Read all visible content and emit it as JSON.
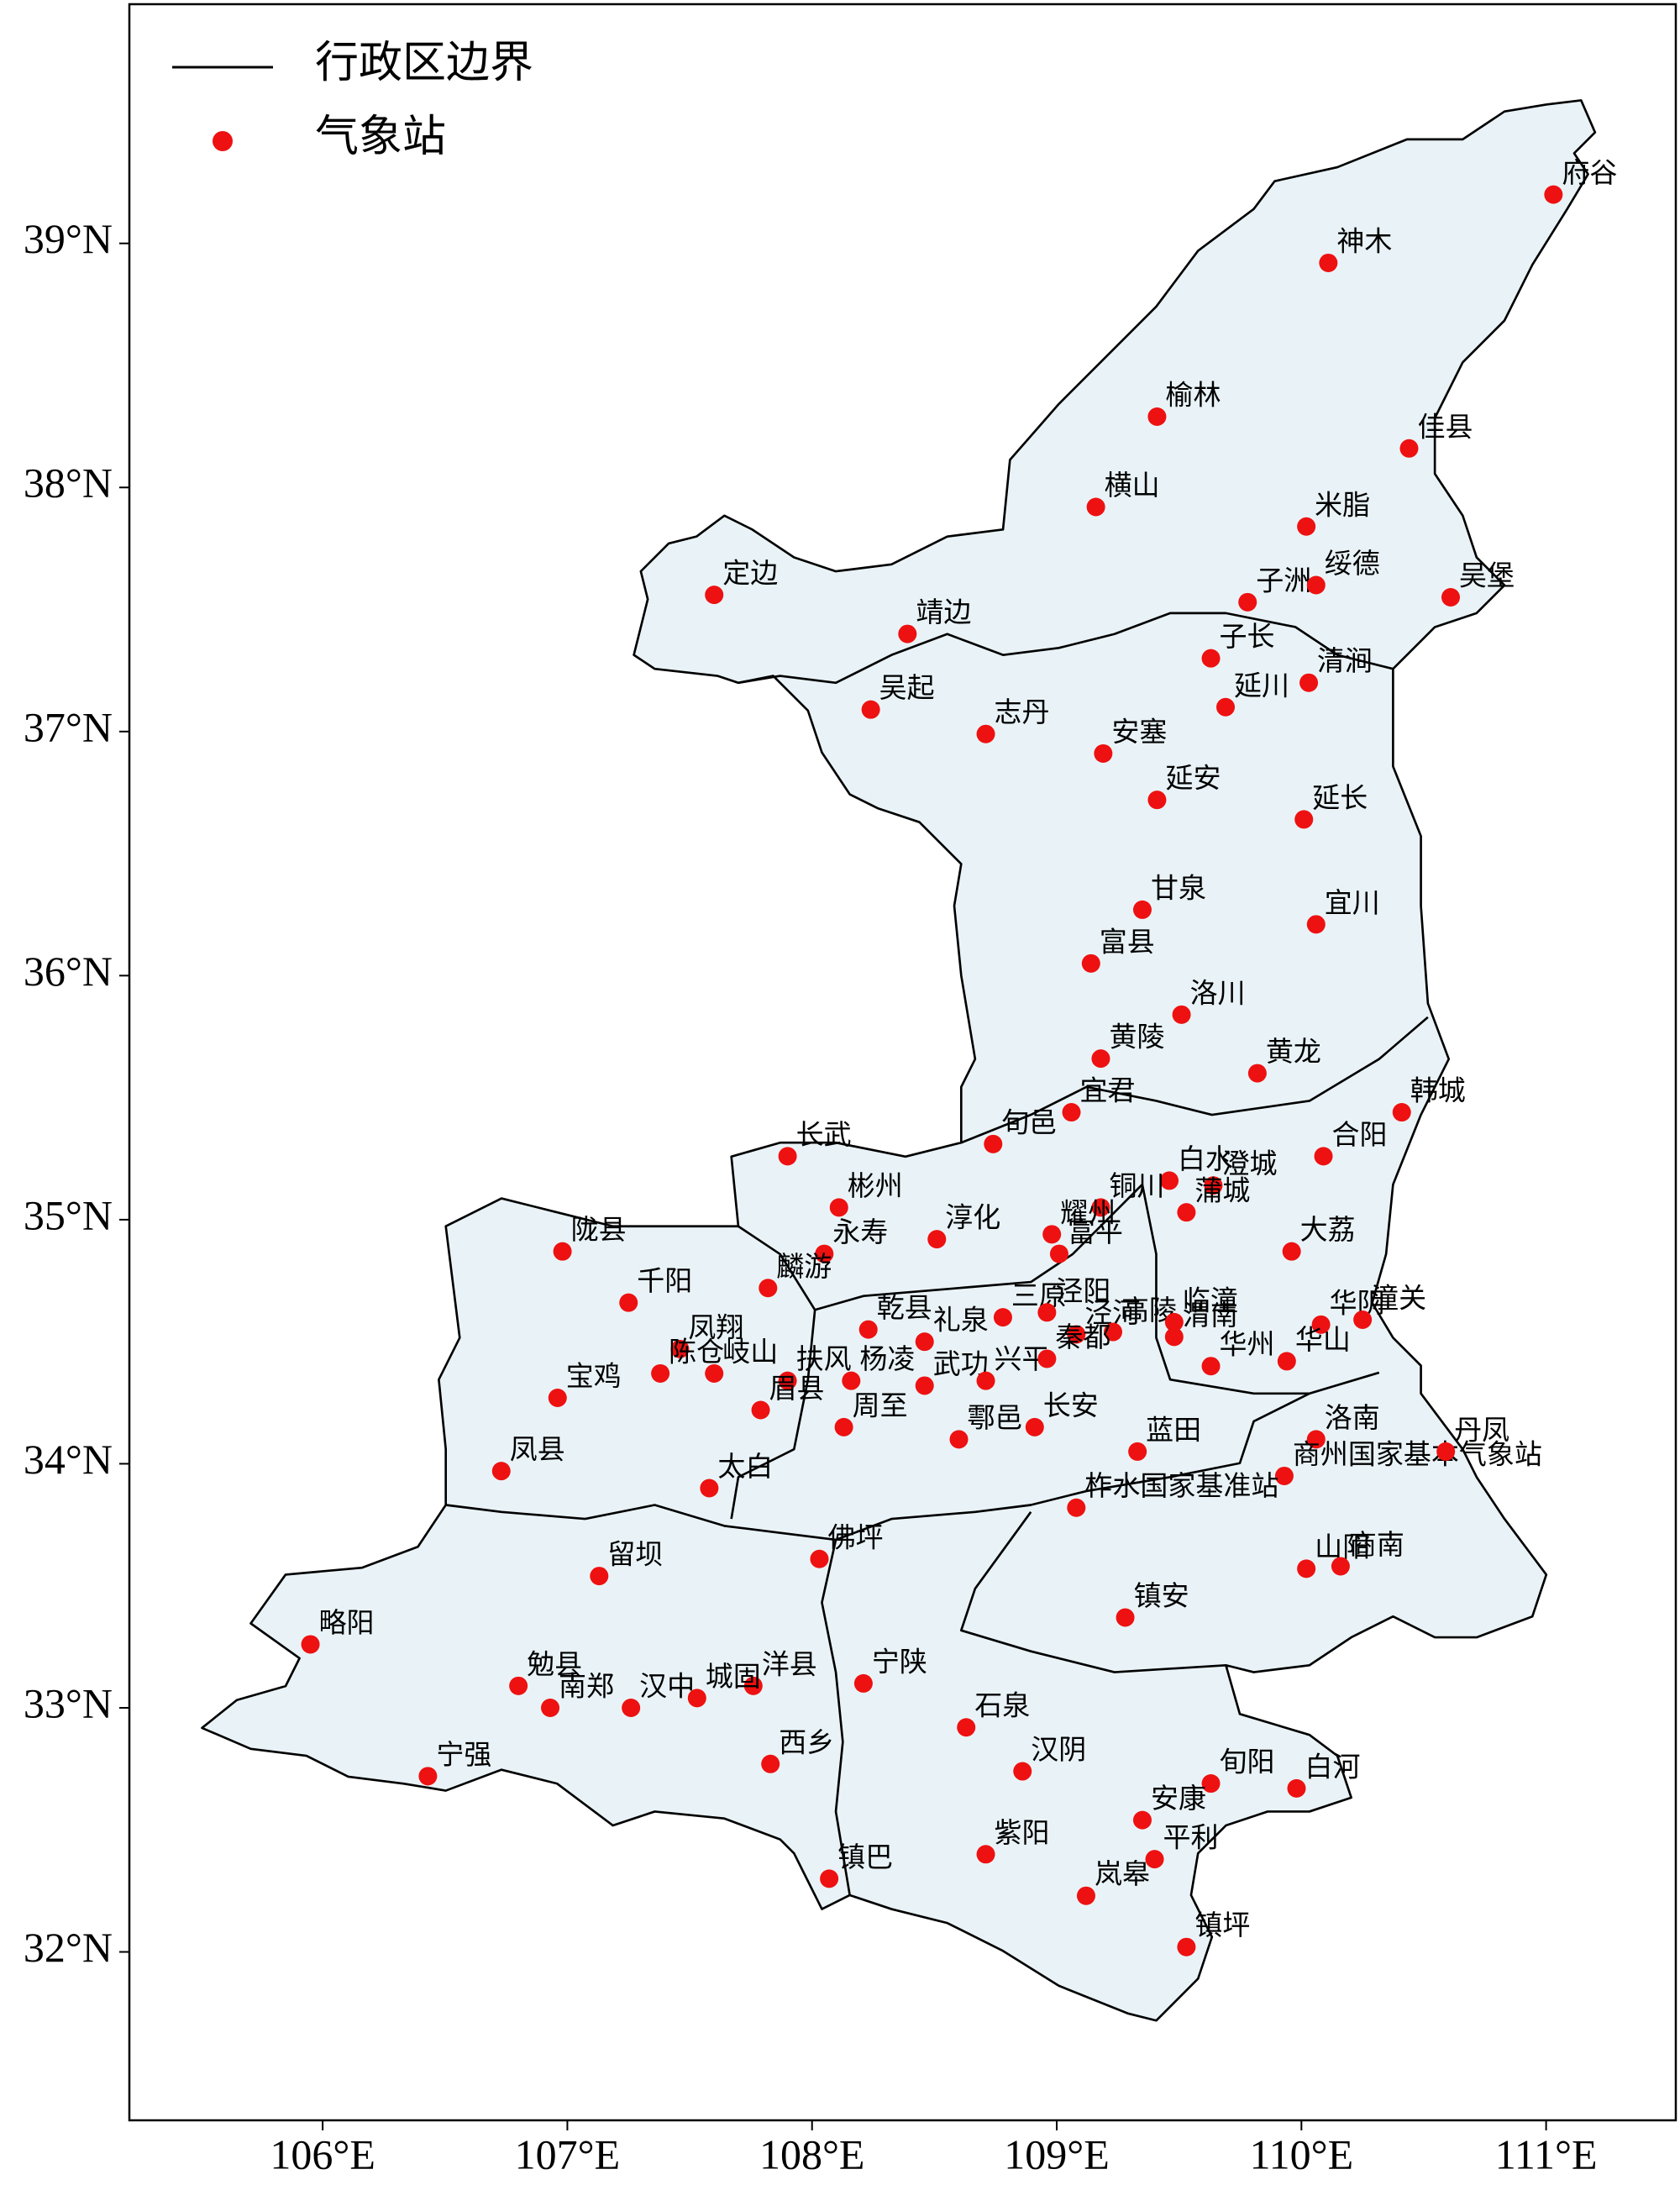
{
  "chart_data": {
    "type": "map",
    "legend": {
      "boundary": "行政区边界",
      "stations": "气象站"
    },
    "color": "#ee1111",
    "boundary_color": "#000000",
    "fill": "#e9f3f7",
    "xlim": [
      105.21,
      111.53
    ],
    "ylim": [
      31.31,
      39.98
    ],
    "xticks": [
      {
        "value": 106,
        "label": "106°E"
      },
      {
        "value": 107,
        "label": "107°E"
      },
      {
        "value": 108,
        "label": "108°E"
      },
      {
        "value": 109,
        "label": "109°E"
      },
      {
        "value": 110,
        "label": "110°E"
      },
      {
        "value": 111,
        "label": "111°E"
      }
    ],
    "yticks": [
      {
        "value": 32,
        "label": "32°N"
      },
      {
        "value": 33,
        "label": "33°N"
      },
      {
        "value": 34,
        "label": "34°N"
      },
      {
        "value": 35,
        "label": "35°N"
      },
      {
        "value": 36,
        "label": "36°N"
      },
      {
        "value": 37,
        "label": "37°N"
      },
      {
        "value": 38,
        "label": "38°N"
      },
      {
        "value": 39,
        "label": "39°N"
      }
    ],
    "stations": {
      "names": [
        "府谷",
        "神木",
        "榆林",
        "佳县",
        "横山",
        "米脂",
        "定边",
        "子洲",
        "绥德",
        "吴堡",
        "靖边",
        "子长",
        "清涧",
        "吴起",
        "延川",
        "志丹",
        "安塞",
        "延安",
        "延长",
        "甘泉",
        "宜川",
        "富县",
        "洛川",
        "黄陵",
        "黄龙",
        "宜君",
        "韩城",
        "旬邑",
        "长武",
        "合阳",
        "白水",
        "澄城",
        "铜川",
        "彬州",
        "蒲城",
        "耀州",
        "淳化",
        "陇县",
        "富平",
        "大荔",
        "永寿",
        "麟游",
        "千阳",
        "三原",
        "泾阳",
        "乾县",
        "礼泉",
        "泾河",
        "高陵",
        "临潼",
        "渭南",
        "华州",
        "华阴",
        "潼关",
        "华山",
        "凤翔",
        "陈仓",
        "岐山",
        "宝鸡",
        "扶风",
        "眉县",
        "杨凌",
        "武功",
        "兴平",
        "秦都",
        "周至",
        "鄠邑",
        "长安",
        "蓝田",
        "洛南",
        "商州国家基本气象站",
        "丹凤",
        "凤县",
        "太白",
        "柞水国家基准站",
        "佛坪",
        "留坝",
        "山阳",
        "商南",
        "镇安",
        "略阳",
        "勉县",
        "宁陕",
        "洋县",
        "城固",
        "南郑",
        "汉中",
        "石泉",
        "西乡",
        "汉阴",
        "宁强",
        "旬阳",
        "白河",
        "安康",
        "平利",
        "紫阳",
        "镇巴",
        "岚皋",
        "镇坪"
      ],
      "x": [
        111.03,
        110.11,
        109.41,
        110.44,
        109.16,
        110.02,
        107.6,
        109.78,
        110.06,
        110.61,
        108.39,
        109.63,
        110.03,
        108.24,
        109.69,
        108.71,
        109.19,
        109.41,
        110.01,
        109.35,
        110.06,
        109.14,
        109.51,
        109.18,
        109.82,
        109.06,
        110.41,
        108.74,
        107.9,
        110.09,
        109.46,
        109.64,
        109.18,
        108.11,
        109.53,
        108.98,
        108.51,
        106.98,
        109.01,
        109.96,
        108.05,
        107.82,
        107.25,
        108.78,
        108.96,
        108.23,
        108.46,
        109.08,
        109.23,
        109.48,
        109.48,
        109.63,
        110.08,
        110.25,
        109.94,
        107.46,
        107.38,
        107.6,
        106.96,
        107.9,
        107.79,
        108.16,
        108.46,
        108.71,
        108.96,
        108.13,
        108.6,
        108.91,
        109.33,
        110.06,
        109.93,
        110.59,
        106.73,
        107.58,
        109.08,
        108.03,
        107.13,
        110.02,
        110.16,
        109.28,
        105.95,
        106.8,
        108.21,
        107.76,
        107.53,
        106.93,
        107.26,
        108.63,
        107.83,
        108.86,
        106.43,
        109.63,
        109.98,
        109.35,
        109.4,
        108.71,
        108.07,
        109.12,
        109.53
      ],
      "y": [
        39.2,
        38.92,
        38.29,
        38.16,
        37.92,
        37.84,
        37.56,
        37.53,
        37.6,
        37.55,
        37.4,
        37.3,
        37.2,
        37.09,
        37.1,
        36.99,
        36.91,
        36.72,
        36.64,
        36.27,
        36.21,
        36.05,
        35.84,
        35.66,
        35.6,
        35.44,
        35.44,
        35.31,
        35.26,
        35.26,
        35.16,
        35.14,
        35.05,
        35.05,
        35.03,
        34.94,
        34.92,
        34.87,
        34.86,
        34.87,
        34.86,
        34.72,
        34.66,
        34.6,
        34.62,
        34.55,
        34.5,
        34.53,
        34.54,
        34.58,
        34.52,
        34.4,
        34.57,
        34.59,
        34.42,
        34.47,
        34.37,
        34.37,
        34.27,
        34.34,
        34.22,
        34.34,
        34.32,
        34.34,
        34.43,
        34.15,
        34.1,
        34.15,
        34.05,
        34.1,
        33.95,
        34.05,
        33.97,
        33.9,
        33.82,
        33.61,
        33.54,
        33.57,
        33.58,
        33.37,
        33.26,
        33.09,
        33.1,
        33.09,
        33.04,
        33.0,
        33.0,
        32.92,
        32.77,
        32.74,
        32.72,
        32.69,
        32.67,
        32.54,
        32.38,
        32.4,
        32.3,
        32.23,
        32.02
      ]
    }
  }
}
